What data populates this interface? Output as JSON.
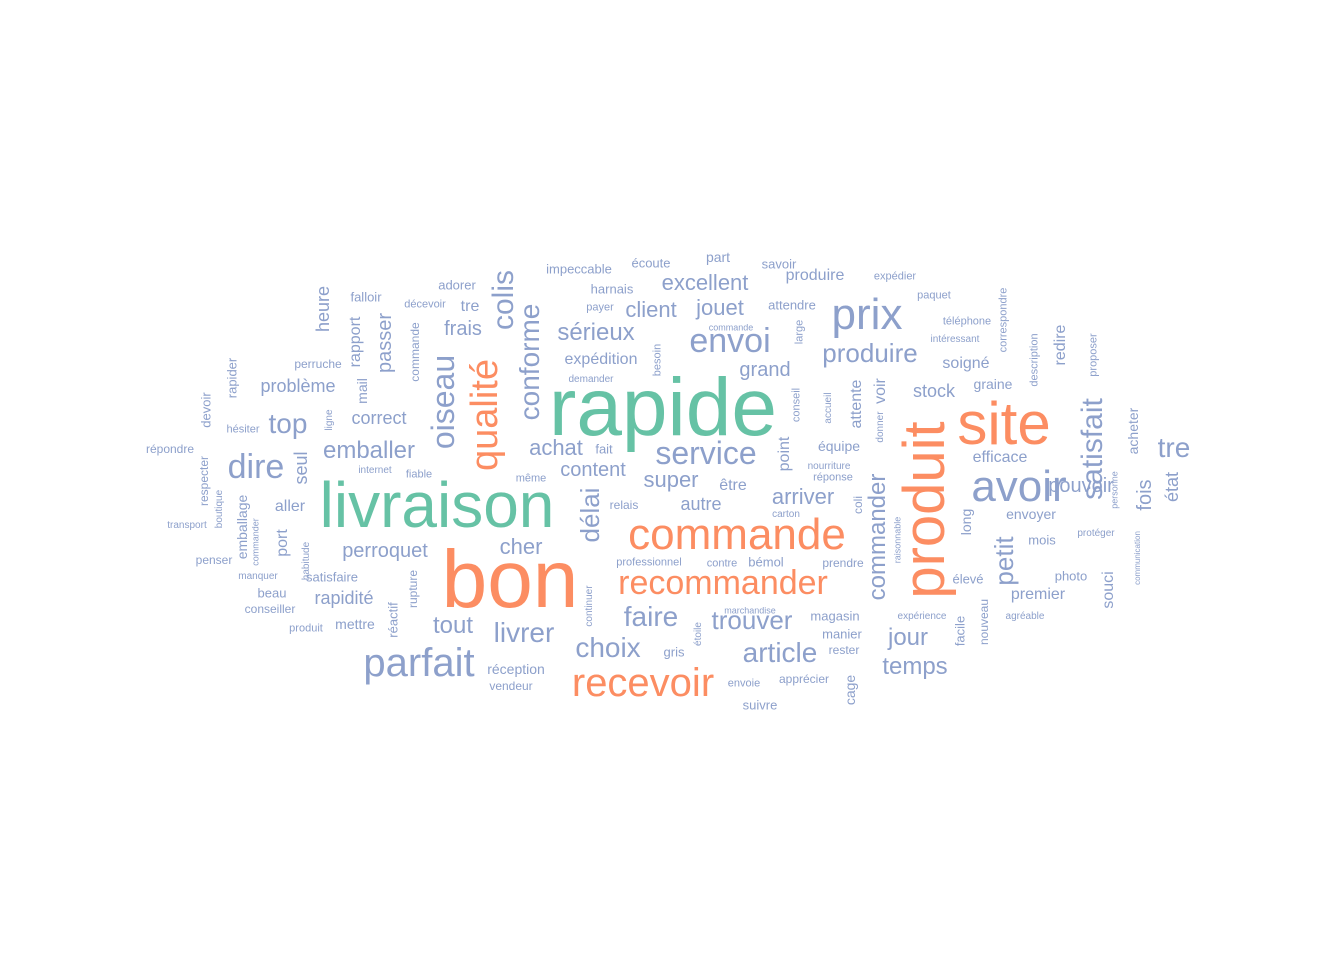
{
  "colors": {
    "green": "#66c2a5",
    "orange": "#fc8d62",
    "blue": "#8da0cb",
    "background": "#ffffff"
  },
  "words": [
    {
      "text": "bon",
      "color": "orange",
      "weight": 1.0
    },
    {
      "text": "rapide",
      "color": "green",
      "weight": 0.98
    },
    {
      "text": "livraison",
      "color": "green",
      "weight": 0.95
    },
    {
      "text": "produit",
      "color": "orange",
      "weight": 0.85
    },
    {
      "text": "site",
      "color": "orange",
      "weight": 0.84
    },
    {
      "text": "commande",
      "color": "orange",
      "weight": 0.62
    },
    {
      "text": "avoir",
      "color": "blue",
      "weight": 0.58
    },
    {
      "text": "prix",
      "color": "blue",
      "weight": 0.55
    },
    {
      "text": "parfait",
      "color": "blue",
      "weight": 0.55
    },
    {
      "text": "qualité",
      "color": "orange",
      "weight": 0.54
    },
    {
      "text": "recevoir",
      "color": "orange",
      "weight": 0.52
    },
    {
      "text": "recommander",
      "color": "orange",
      "weight": 0.44
    },
    {
      "text": "oiseau",
      "color": "blue",
      "weight": 0.42
    },
    {
      "text": "envoi",
      "color": "blue",
      "weight": 0.4
    },
    {
      "text": "satisfait",
      "color": "blue",
      "weight": 0.4
    },
    {
      "text": "service",
      "color": "blue",
      "weight": 0.38
    },
    {
      "text": "colis",
      "color": "blue",
      "weight": 0.38
    },
    {
      "text": "conforme",
      "color": "blue",
      "weight": 0.37
    },
    {
      "text": "dire",
      "color": "blue",
      "weight": 0.37
    },
    {
      "text": "commander",
      "color": "blue",
      "weight": 0.34
    },
    {
      "text": "article",
      "color": "blue",
      "weight": 0.33
    },
    {
      "text": "choix",
      "color": "blue",
      "weight": 0.33
    },
    {
      "text": "faire",
      "color": "blue",
      "weight": 0.33
    },
    {
      "text": "livrer",
      "color": "blue",
      "weight": 0.33
    },
    {
      "text": "délai",
      "color": "blue",
      "weight": 0.3
    },
    {
      "text": "petit",
      "color": "blue",
      "weight": 0.3
    },
    {
      "text": "tre",
      "color": "blue",
      "weight": 0.3
    },
    {
      "text": "top",
      "color": "blue",
      "weight": 0.3
    },
    {
      "text": "trouver",
      "color": "blue",
      "weight": 0.3
    },
    {
      "text": "produire",
      "color": "blue",
      "weight": 0.28
    },
    {
      "text": "tout",
      "color": "blue",
      "weight": 0.28
    },
    {
      "text": "jour",
      "color": "blue",
      "weight": 0.28
    },
    {
      "text": "temps",
      "color": "blue",
      "weight": 0.27
    },
    {
      "text": "excellent",
      "color": "blue",
      "weight": 0.27
    },
    {
      "text": "sérieux",
      "color": "blue",
      "weight": 0.27
    },
    {
      "text": "jouet",
      "color": "blue",
      "weight": 0.26
    },
    {
      "text": "arriver",
      "color": "blue",
      "weight": 0.25
    },
    {
      "text": "emballer",
      "color": "blue",
      "weight": 0.25
    },
    {
      "text": "super",
      "color": "blue",
      "weight": 0.25
    },
    {
      "text": "achat",
      "color": "blue",
      "weight": 0.24
    },
    {
      "text": "cher",
      "color": "blue",
      "weight": 0.24
    },
    {
      "text": "client",
      "color": "blue",
      "weight": 0.23
    },
    {
      "text": "passer",
      "color": "blue",
      "weight": 0.23
    },
    {
      "text": "fois",
      "color": "blue",
      "weight": 0.23
    },
    {
      "text": "pouvoir",
      "color": "blue",
      "weight": 0.22
    },
    {
      "text": "content",
      "color": "blue",
      "weight": 0.22
    },
    {
      "text": "grand",
      "color": "blue",
      "weight": 0.21
    },
    {
      "text": "frais",
      "color": "blue",
      "weight": 0.21
    },
    {
      "text": "perroquet",
      "color": "blue",
      "weight": 0.21
    },
    {
      "text": "état",
      "color": "blue",
      "weight": 0.2
    },
    {
      "text": "heure",
      "color": "blue",
      "weight": 0.2
    },
    {
      "text": "rapidité",
      "color": "blue",
      "weight": 0.2
    },
    {
      "text": "autre",
      "color": "blue",
      "weight": 0.2
    },
    {
      "text": "seul",
      "color": "blue",
      "weight": 0.2
    },
    {
      "text": "stock",
      "color": "blue",
      "weight": 0.19
    },
    {
      "text": "produire",
      "color": "blue",
      "weight": 0.19
    },
    {
      "text": "problème",
      "color": "blue",
      "weight": 0.19
    },
    {
      "text": "correct",
      "color": "blue",
      "weight": 0.19
    },
    {
      "text": "premier",
      "color": "blue",
      "weight": 0.19
    },
    {
      "text": "attente",
      "color": "blue",
      "weight": 0.19
    },
    {
      "text": "redire",
      "color": "blue",
      "weight": 0.19
    },
    {
      "text": "expédition",
      "color": "blue",
      "weight": 0.18
    },
    {
      "text": "rapport",
      "color": "blue",
      "weight": 0.18
    },
    {
      "text": "port",
      "color": "blue",
      "weight": 0.18
    },
    {
      "text": "point",
      "color": "blue",
      "weight": 0.18
    },
    {
      "text": "être",
      "color": "blue",
      "weight": 0.18
    },
    {
      "text": "tre",
      "color": "blue",
      "weight": 0.18
    },
    {
      "text": "soigné",
      "color": "blue",
      "weight": 0.18
    },
    {
      "text": "souci",
      "color": "blue",
      "weight": 0.18
    },
    {
      "text": "efficace",
      "color": "blue",
      "weight": 0.18
    },
    {
      "text": "voir",
      "color": "blue",
      "weight": 0.18
    },
    {
      "text": "emballage",
      "color": "blue",
      "weight": 0.17
    },
    {
      "text": "envoyer",
      "color": "blue",
      "weight": 0.17
    },
    {
      "text": "long",
      "color": "blue",
      "weight": 0.17
    },
    {
      "text": "mail",
      "color": "blue",
      "weight": 0.16
    },
    {
      "text": "aller",
      "color": "blue",
      "weight": 0.17
    },
    {
      "text": "mettre",
      "color": "blue",
      "weight": 0.16
    },
    {
      "text": "graine",
      "color": "blue",
      "weight": 0.16
    },
    {
      "text": "cage",
      "color": "blue",
      "weight": 0.16
    },
    {
      "text": "acheter",
      "color": "blue",
      "weight": 0.16
    },
    {
      "text": "équipe",
      "color": "blue",
      "weight": 0.15
    },
    {
      "text": "magasin",
      "color": "blue",
      "weight": 0.15
    },
    {
      "text": "réception",
      "color": "blue",
      "weight": 0.15
    },
    {
      "text": "photo",
      "color": "blue",
      "weight": 0.14
    },
    {
      "text": "suivre",
      "color": "blue",
      "weight": 0.15
    },
    {
      "text": "gris",
      "color": "blue",
      "weight": 0.14
    },
    {
      "text": "fait",
      "color": "blue",
      "weight": 0.15
    },
    {
      "text": "mois",
      "color": "blue",
      "weight": 0.14
    },
    {
      "text": "élevé",
      "color": "blue",
      "weight": 0.14
    },
    {
      "text": "satisfaire",
      "color": "blue",
      "weight": 0.14
    },
    {
      "text": "beau",
      "color": "blue",
      "weight": 0.14
    },
    {
      "text": "attendre",
      "color": "blue",
      "weight": 0.14
    },
    {
      "text": "manier",
      "color": "blue",
      "weight": 0.14
    },
    {
      "text": "facile",
      "color": "blue",
      "weight": 0.14
    },
    {
      "text": "savoir",
      "color": "blue",
      "weight": 0.13
    },
    {
      "text": "part",
      "color": "blue",
      "weight": 0.15
    },
    {
      "text": "adorer",
      "color": "blue",
      "weight": 0.13
    },
    {
      "text": "falloir",
      "color": "blue",
      "weight": 0.13
    },
    {
      "text": "harnais",
      "color": "blue",
      "weight": 0.13
    },
    {
      "text": "écoute",
      "color": "blue",
      "weight": 0.13
    },
    {
      "text": "impeccable",
      "color": "blue",
      "weight": 0.13
    },
    {
      "text": "réactif",
      "color": "blue",
      "weight": 0.13
    },
    {
      "text": "nouveau",
      "color": "blue",
      "weight": 0.13
    },
    {
      "text": "bémol",
      "color": "blue",
      "weight": 0.13
    },
    {
      "text": "apprécier",
      "color": "blue",
      "weight": 0.12
    },
    {
      "text": "perruche",
      "color": "blue",
      "weight": 0.13
    },
    {
      "text": "devoir",
      "color": "blue",
      "weight": 0.13
    },
    {
      "text": "rapider",
      "color": "blue",
      "weight": 0.13
    },
    {
      "text": "respecter",
      "color": "blue",
      "weight": 0.13
    },
    {
      "text": "penser",
      "color": "blue",
      "weight": 0.12
    },
    {
      "text": "rupture",
      "color": "blue",
      "weight": 0.12
    },
    {
      "text": "conseiller",
      "color": "blue",
      "weight": 0.12
    },
    {
      "text": "rester",
      "color": "blue",
      "weight": 0.12
    },
    {
      "text": "vendeur",
      "color": "blue",
      "weight": 0.12
    },
    {
      "text": "relais",
      "color": "blue",
      "weight": 0.12
    },
    {
      "text": "prendre",
      "color": "blue",
      "weight": 0.12
    },
    {
      "text": "hésiter",
      "color": "blue",
      "weight": 0.12
    },
    {
      "text": "répondre",
      "color": "blue",
      "weight": 0.12
    },
    {
      "text": "fiable",
      "color": "blue",
      "weight": 0.12
    },
    {
      "text": "même",
      "color": "blue",
      "weight": 0.12
    },
    {
      "text": "coli",
      "color": "blue",
      "weight": 0.12
    },
    {
      "text": "produit",
      "color": "blue",
      "weight": 0.12
    },
    {
      "text": "envoie",
      "color": "blue",
      "weight": 0.11
    },
    {
      "text": "contre",
      "color": "blue",
      "weight": 0.11
    },
    {
      "text": "professionnel",
      "color": "blue",
      "weight": 0.11
    },
    {
      "text": "payer",
      "color": "blue",
      "weight": 0.11
    },
    {
      "text": "décevoir",
      "color": "blue",
      "weight": 0.1
    },
    {
      "text": "paquet",
      "color": "blue",
      "weight": 0.11
    },
    {
      "text": "téléphone",
      "color": "blue",
      "weight": 0.11
    },
    {
      "text": "expédier",
      "color": "blue",
      "weight": 0.1
    },
    {
      "text": "commande",
      "color": "blue",
      "weight": 0.11
    },
    {
      "text": "besoin",
      "color": "blue",
      "weight": 0.11
    },
    {
      "text": "conseil",
      "color": "blue",
      "weight": 0.11
    },
    {
      "text": "large",
      "color": "blue",
      "weight": 0.11
    },
    {
      "text": "description",
      "color": "blue",
      "weight": 0.11
    },
    {
      "text": "correspondre",
      "color": "blue",
      "weight": 0.1
    },
    {
      "text": "proposer",
      "color": "blue",
      "weight": 0.1
    },
    {
      "text": "manquer",
      "color": "blue",
      "weight": 0.1
    },
    {
      "text": "boutique",
      "color": "blue",
      "weight": 0.1
    },
    {
      "text": "ligne",
      "color": "blue",
      "weight": 0.1
    },
    {
      "text": "carton",
      "color": "blue",
      "weight": 0.1
    },
    {
      "text": "réponse",
      "color": "blue",
      "weight": 0.1
    },
    {
      "text": "étoile",
      "color": "blue",
      "weight": 0.1
    },
    {
      "text": "continuer",
      "color": "blue",
      "weight": 0.09
    },
    {
      "text": "habitude",
      "color": "blue",
      "weight": 0.09
    },
    {
      "text": "accueil",
      "color": "blue",
      "weight": 0.09
    },
    {
      "text": "donner",
      "color": "blue",
      "weight": 0.09
    },
    {
      "text": "expérience",
      "color": "blue",
      "weight": 0.09
    },
    {
      "text": "agréable",
      "color": "blue",
      "weight": 0.09
    },
    {
      "text": "protéger",
      "color": "blue",
      "weight": 0.09
    },
    {
      "text": "intéressant",
      "color": "blue",
      "weight": 0.09
    },
    {
      "text": "transport",
      "color": "blue",
      "weight": 0.08
    },
    {
      "text": "internet",
      "color": "blue",
      "weight": 0.08
    },
    {
      "text": "demander",
      "color": "blue",
      "weight": 0.08
    },
    {
      "text": "nourriture",
      "color": "blue",
      "weight": 0.08
    },
    {
      "text": "raisonnable",
      "color": "blue",
      "weight": 0.08
    },
    {
      "text": "commande",
      "color": "blue",
      "weight": 0.07
    },
    {
      "text": "marchandise",
      "color": "blue",
      "weight": 0.07
    },
    {
      "text": "commander",
      "color": "blue",
      "weight": 0.07
    },
    {
      "text": "personne",
      "color": "blue",
      "weight": 0.07
    },
    {
      "text": "communication",
      "color": "blue",
      "weight": 0.06
    }
  ]
}
